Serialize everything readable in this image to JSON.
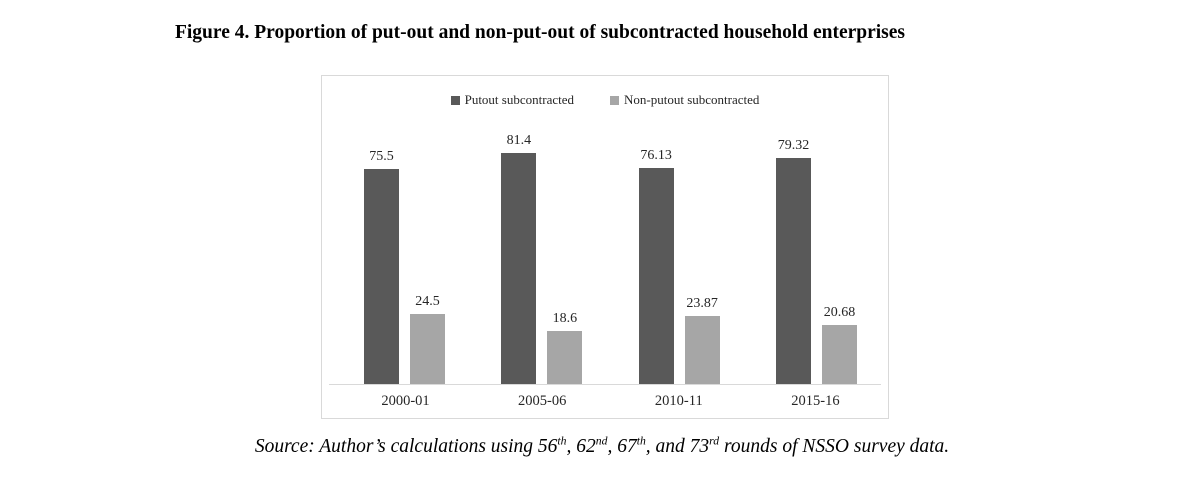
{
  "figure": {
    "title": "Figure 4. Proportion of put-out and non-put-out of subcontracted household enterprises",
    "source_segments": [
      {
        "text": "Source: Author’s calculations using 56"
      },
      {
        "sup": "th"
      },
      {
        "text": ", 62"
      },
      {
        "sup": "nd"
      },
      {
        "text": ", 67"
      },
      {
        "sup": "th"
      },
      {
        "text": ", and 73"
      },
      {
        "sup": "rd"
      },
      {
        "text": " rounds of NSSO survey data."
      }
    ]
  },
  "chart_data": {
    "type": "bar",
    "title": "Figure 4. Proportion of put-out and non-put-out of subcontracted household enterprises",
    "categories": [
      "2000-01",
      "2005-06",
      "2010-11",
      "2015-16"
    ],
    "series": [
      {
        "name": "Putout subcontracted",
        "color": "#595959",
        "values": [
          75.5,
          81.4,
          76.13,
          79.32
        ]
      },
      {
        "name": "Non-putout subcontracted",
        "color": "#a6a6a6",
        "values": [
          24.5,
          18.6,
          23.87,
          20.68
        ]
      }
    ],
    "data_labels": true,
    "xlabel": "",
    "ylabel": "",
    "ylim": [
      0,
      109
    ],
    "grid": false,
    "y_axis_visible": false,
    "legend_position": "top-center",
    "axis_line_color": "#d9d9d9",
    "frame_border_color": "#d9d9d9"
  }
}
